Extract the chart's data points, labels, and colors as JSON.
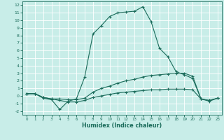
{
  "xlabel": "Humidex (Indice chaleur)",
  "bg_color": "#c8ede8",
  "grid_color": "#ffffff",
  "line_color": "#1a6b5a",
  "xlim": [
    -0.5,
    23.5
  ],
  "ylim": [
    -2.5,
    12.5
  ],
  "xticks": [
    0,
    1,
    2,
    3,
    4,
    5,
    6,
    7,
    8,
    9,
    10,
    11,
    12,
    13,
    14,
    15,
    16,
    17,
    18,
    19,
    20,
    21,
    22,
    23
  ],
  "yticks": [
    -2,
    -1,
    0,
    1,
    2,
    3,
    4,
    5,
    6,
    7,
    8,
    9,
    10,
    11,
    12
  ],
  "line1_x": [
    0,
    1,
    2,
    3,
    4,
    5,
    6,
    7,
    8,
    9,
    10,
    11,
    12,
    13,
    14,
    15,
    16,
    17,
    18,
    19,
    20,
    21,
    22,
    23
  ],
  "line1_y": [
    0.3,
    0.3,
    -0.3,
    -0.5,
    -1.8,
    -0.7,
    -0.4,
    2.5,
    8.2,
    9.3,
    10.5,
    11.0,
    11.1,
    11.2,
    11.8,
    9.8,
    6.3,
    5.2,
    3.2,
    2.8,
    2.3,
    -0.4,
    -0.7,
    -0.3
  ],
  "line2_x": [
    0,
    1,
    2,
    3,
    4,
    5,
    6,
    7,
    8,
    9,
    10,
    11,
    12,
    13,
    14,
    15,
    16,
    17,
    18,
    19,
    20,
    21,
    22,
    23
  ],
  "line2_y": [
    0.3,
    0.3,
    -0.2,
    -0.4,
    -0.4,
    -0.5,
    -0.5,
    -0.3,
    0.5,
    1.0,
    1.3,
    1.7,
    2.0,
    2.2,
    2.5,
    2.7,
    2.8,
    2.9,
    3.0,
    3.0,
    2.6,
    -0.4,
    -0.6,
    -0.3
  ],
  "line3_x": [
    0,
    1,
    2,
    3,
    4,
    5,
    6,
    7,
    8,
    9,
    10,
    11,
    12,
    13,
    14,
    15,
    16,
    17,
    18,
    19,
    20,
    21,
    22,
    23
  ],
  "line3_y": [
    0.3,
    0.3,
    -0.2,
    -0.4,
    -0.6,
    -0.8,
    -0.8,
    -0.6,
    -0.2,
    0.0,
    0.2,
    0.4,
    0.5,
    0.6,
    0.7,
    0.8,
    0.8,
    0.9,
    0.9,
    0.9,
    0.8,
    -0.4,
    -0.6,
    -0.3
  ]
}
